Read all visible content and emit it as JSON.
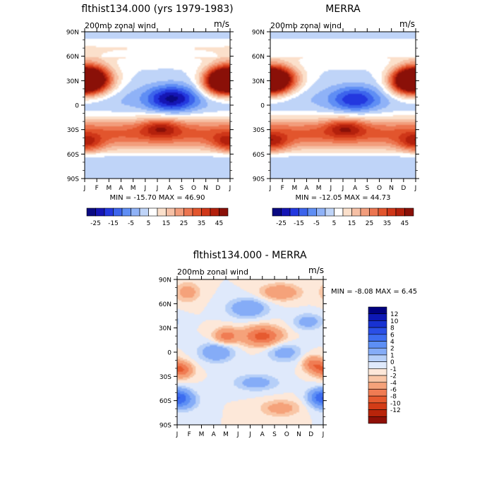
{
  "panels": [
    {
      "title": "flthist134.000 (yrs 1979-1983)",
      "inner_title": "200mb zonal wind",
      "units": "m/s",
      "stats": "MIN = -15.70 MAX = 46.90",
      "colorbar": {
        "orientation": "horizontal",
        "colors": [
          "#0a0a82",
          "#1515b4",
          "#2338df",
          "#3c64ec",
          "#5f8ef4",
          "#8fb2f7",
          "#bfd4f8",
          "#ffffff",
          "#fbe0cb",
          "#f6c0a5",
          "#f29d7c",
          "#ec7550",
          "#e2552d",
          "#cf3618",
          "#b3200c",
          "#8a1008"
        ],
        "labels": [
          "-25",
          "-15",
          "-5",
          "5",
          "15",
          "25",
          "35",
          "45"
        ]
      }
    },
    {
      "title": "MERRA",
      "inner_title": "200mb zonal wind",
      "units": "m/s",
      "stats": "MIN = -12.05 MAX = 44.73",
      "colorbar": {
        "orientation": "horizontal",
        "colors": [
          "#0a0a82",
          "#1515b4",
          "#2338df",
          "#3c64ec",
          "#5f8ef4",
          "#8fb2f7",
          "#bfd4f8",
          "#ffffff",
          "#fbe0cb",
          "#f6c0a5",
          "#f29d7c",
          "#ec7550",
          "#e2552d",
          "#cf3618",
          "#b3200c",
          "#8a1008"
        ],
        "labels": [
          "-25",
          "-15",
          "-5",
          "5",
          "15",
          "25",
          "35",
          "45"
        ]
      }
    },
    {
      "title": "flthist134.000 - MERRA",
      "inner_title": "200mb zonal wind",
      "units": "m/s",
      "stats": "MIN = -8.08 MAX = 6.45",
      "colorbar": {
        "orientation": "vertical",
        "colors": [
          "#00007f",
          "#0d18b5",
          "#1832d2",
          "#2a4fe6",
          "#3d6df0",
          "#5d8ff5",
          "#85acf7",
          "#b6cff8",
          "#dfe9fb",
          "#fde8d9",
          "#f9c6a6",
          "#f5a27a",
          "#f07c53",
          "#e65a2f",
          "#d33c17",
          "#b8240a",
          "#8f1007"
        ],
        "labels": [
          "12",
          "10",
          "8",
          "6",
          "4",
          "2",
          "1",
          "0",
          "-1",
          "-2",
          "-4",
          "-6",
          "-8",
          "-10",
          "-12"
        ]
      }
    }
  ],
  "chart_data": [
    {
      "type": "heatmap",
      "title": "flthist134.000 (yrs 1979-1983)",
      "subtitle": "200mb zonal wind",
      "units": "m/s",
      "x_ticks": [
        "J",
        "F",
        "M",
        "A",
        "M",
        "J",
        "J",
        "A",
        "S",
        "O",
        "N",
        "D",
        "J"
      ],
      "y_ticks": [
        "90N",
        "60N",
        "30N",
        "0",
        "30S",
        "60S",
        "90S"
      ],
      "xlim": [
        0,
        12
      ],
      "ylim": [
        -90,
        90
      ],
      "min": -15.7,
      "max": 46.9,
      "legend": "bottom",
      "features": [
        {
          "type": "jet",
          "lat": 32,
          "month": 0.3,
          "width": 18,
          "lon_width": 1.9,
          "amp": 46
        },
        {
          "type": "jet",
          "lat": 30,
          "month": 12.0,
          "width": 16,
          "lon_width": 1.6,
          "amp": 40
        },
        {
          "type": "jet",
          "lat": 28,
          "month": 10.8,
          "width": 16,
          "lon_width": 1.2,
          "amp": 18
        },
        {
          "type": "band",
          "lat_center": -35,
          "lat_width": 20,
          "amp": 26
        },
        {
          "type": "jet",
          "lat": -28,
          "month": 6.3,
          "width": 12,
          "lon_width": 1.6,
          "amp": 18
        },
        {
          "type": "jet",
          "lat": -48,
          "month": 0.4,
          "width": 11,
          "lon_width": 1.3,
          "amp": 12
        },
        {
          "type": "jet",
          "lat": -46,
          "month": 11.6,
          "width": 11,
          "lon_width": 1.3,
          "amp": 10
        },
        {
          "type": "jet",
          "lat": 8,
          "month": 7.2,
          "width": 16,
          "lon_width": 2.0,
          "amp": -26
        },
        {
          "type": "band",
          "lat_center": 70,
          "lat_width": 14,
          "amp": 9
        },
        {
          "type": "band",
          "lat_center": 5,
          "lat_width": 22,
          "amp": -6
        }
      ]
    },
    {
      "type": "heatmap",
      "title": "MERRA",
      "subtitle": "200mb zonal wind",
      "units": "m/s",
      "x_ticks": [
        "J",
        "F",
        "M",
        "A",
        "M",
        "J",
        "J",
        "A",
        "S",
        "O",
        "N",
        "D",
        "J"
      ],
      "y_ticks": [
        "90N",
        "60N",
        "30N",
        "0",
        "30S",
        "60S",
        "90S"
      ],
      "xlim": [
        0,
        12
      ],
      "ylim": [
        -90,
        90
      ],
      "min": -12.05,
      "max": 44.73,
      "legend": "bottom",
      "features": [
        {
          "type": "jet",
          "lat": 32,
          "month": 0.3,
          "width": 17,
          "lon_width": 1.9,
          "amp": 44
        },
        {
          "type": "jet",
          "lat": 30,
          "month": 12.0,
          "width": 16,
          "lon_width": 1.5,
          "amp": 38
        },
        {
          "type": "jet",
          "lat": 28,
          "month": 10.8,
          "width": 16,
          "lon_width": 1.2,
          "amp": 16
        },
        {
          "type": "band",
          "lat_center": -35,
          "lat_width": 20,
          "amp": 26
        },
        {
          "type": "jet",
          "lat": -28,
          "month": 6.2,
          "width": 12,
          "lon_width": 1.6,
          "amp": 18
        },
        {
          "type": "jet",
          "lat": -47,
          "month": 0.4,
          "width": 11,
          "lon_width": 1.3,
          "amp": 12
        },
        {
          "type": "jet",
          "lat": -46,
          "month": 11.6,
          "width": 11,
          "lon_width": 1.3,
          "amp": 10
        },
        {
          "type": "jet",
          "lat": 7,
          "month": 7.0,
          "width": 16,
          "lon_width": 2.0,
          "amp": -20
        },
        {
          "type": "band",
          "lat_center": 70,
          "lat_width": 14,
          "amp": 8
        },
        {
          "type": "band",
          "lat_center": 5,
          "lat_width": 22,
          "amp": -5
        }
      ]
    },
    {
      "type": "heatmap",
      "title": "flthist134.000 - MERRA",
      "subtitle": "200mb zonal wind",
      "units": "m/s",
      "x_ticks": [
        "J",
        "F",
        "M",
        "A",
        "M",
        "J",
        "J",
        "A",
        "S",
        "O",
        "N",
        "D",
        "J"
      ],
      "y_ticks": [
        "90N",
        "60N",
        "30N",
        "0",
        "30S",
        "60S",
        "90S"
      ],
      "xlim": [
        0,
        12
      ],
      "ylim": [
        -90,
        90
      ],
      "min": -8.08,
      "max": 6.45,
      "legend": "right",
      "features": [
        {
          "type": "jet",
          "lat": 20,
          "month": 7.0,
          "width": 12,
          "lon_width": 1.6,
          "amp": -7
        },
        {
          "type": "jet",
          "lat": 20,
          "month": 4.0,
          "width": 10,
          "lon_width": 1.0,
          "amp": -5
        },
        {
          "type": "jet",
          "lat": -22,
          "month": 0.3,
          "width": 10,
          "lon_width": 0.9,
          "amp": -6
        },
        {
          "type": "jet",
          "lat": -15,
          "month": 11.2,
          "width": 10,
          "lon_width": 0.8,
          "amp": -5
        },
        {
          "type": "jet",
          "lat": -60,
          "month": 0.3,
          "width": 12,
          "lon_width": 1.2,
          "amp": 5
        },
        {
          "type": "jet",
          "lat": -55,
          "month": 11.8,
          "width": 10,
          "lon_width": 1.0,
          "amp": 4
        },
        {
          "type": "jet",
          "lat": 0,
          "month": 3.2,
          "width": 12,
          "lon_width": 1.4,
          "amp": 4
        },
        {
          "type": "jet",
          "lat": 0,
          "month": 8.8,
          "width": 12,
          "lon_width": 1.4,
          "amp": 3
        },
        {
          "type": "jet",
          "lat": 55,
          "month": 5.8,
          "width": 12,
          "lon_width": 1.6,
          "amp": 4
        },
        {
          "type": "jet",
          "lat": 75,
          "month": 8.5,
          "width": 10,
          "lon_width": 1.6,
          "amp": -4
        },
        {
          "type": "jet",
          "lat": 75,
          "month": 0.8,
          "width": 12,
          "lon_width": 1.0,
          "amp": -3
        },
        {
          "type": "jet",
          "lat": 38,
          "month": 10.8,
          "width": 10,
          "lon_width": 1.2,
          "amp": 3
        },
        {
          "type": "jet",
          "lat": -38,
          "month": 6.5,
          "width": 10,
          "lon_width": 1.8,
          "amp": 3
        },
        {
          "type": "jet",
          "lat": -70,
          "month": 8.5,
          "width": 10,
          "lon_width": 1.6,
          "amp": -3
        }
      ]
    }
  ]
}
